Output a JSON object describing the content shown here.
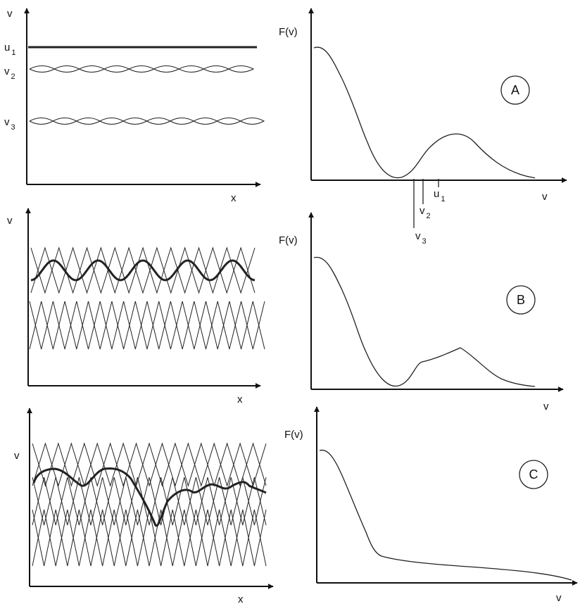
{
  "labels": {
    "v_axis": "v",
    "x_axis": "x",
    "f_axis": "F(v)",
    "u1_main": "u",
    "u1_sub": "1",
    "v2_main": "v",
    "v2_sub": "2",
    "v3_main": "v",
    "v3_sub": "3"
  },
  "panels": [
    {
      "badge": "A"
    },
    {
      "badge": "B"
    },
    {
      "badge": "C"
    }
  ]
}
